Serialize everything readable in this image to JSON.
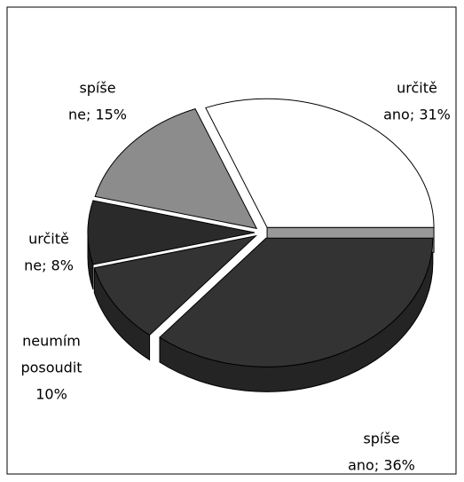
{
  "chart_data": {
    "type": "pie",
    "labels": [
      [
        "určitě",
        "ano; 31%"
      ],
      [
        "spíše",
        "ano; 36%"
      ],
      [
        "neumím",
        "posoudit",
        "10%"
      ],
      [
        "určitě",
        "ne; 8%"
      ],
      [
        "spíše",
        "ne; 15%"
      ]
    ],
    "values": [
      31,
      36,
      10,
      8,
      15
    ],
    "colors": [
      "#ffffff",
      "#333333",
      "#333333",
      "#2a2a2a",
      "#8c8c8c"
    ]
  }
}
